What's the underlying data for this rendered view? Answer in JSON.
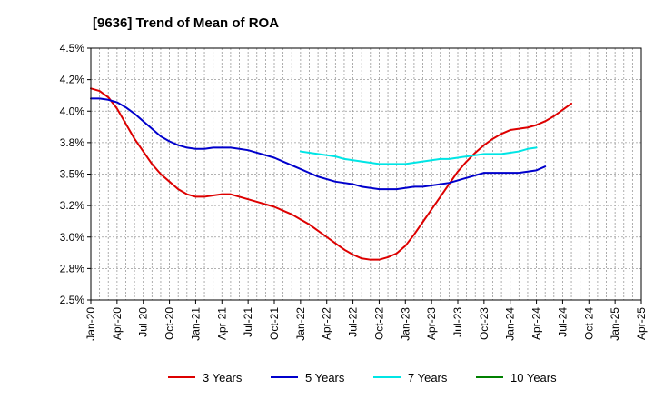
{
  "chart_data": {
    "type": "line",
    "title": "[9636]  Trend of Mean of ROA",
    "xlabel": "",
    "ylabel": "",
    "ylim": [
      2.5,
      4.5
    ],
    "y_ticks": [
      2.5,
      2.75,
      3.0,
      3.25,
      3.5,
      3.75,
      4.0,
      4.25,
      4.5
    ],
    "y_tick_labels": [
      "2.5%",
      "2.8%",
      "3.0%",
      "3.2%",
      "3.5%",
      "3.8%",
      "4.0%",
      "4.2%",
      "4.5%"
    ],
    "x_tick_labels": [
      "Jan-20",
      "Apr-20",
      "Jul-20",
      "Oct-20",
      "Jan-21",
      "Apr-21",
      "Jul-21",
      "Oct-21",
      "Jan-22",
      "Apr-22",
      "Jul-22",
      "Oct-22",
      "Jan-23",
      "Apr-23",
      "Jul-23",
      "Oct-23",
      "Jan-24",
      "Apr-24",
      "Jul-24",
      "Oct-24",
      "Jan-25",
      "Apr-25"
    ],
    "grid": true,
    "legend_position": "bottom",
    "series": [
      {
        "name": "3 Years",
        "color": "#dd0000",
        "start_index": 0,
        "values": [
          4.18,
          4.16,
          4.11,
          4.02,
          3.9,
          3.78,
          3.68,
          3.58,
          3.5,
          3.44,
          3.38,
          3.34,
          3.32,
          3.32,
          3.33,
          3.34,
          3.34,
          3.32,
          3.3,
          3.28,
          3.26,
          3.24,
          3.21,
          3.18,
          3.14,
          3.1,
          3.05,
          3.0,
          2.95,
          2.9,
          2.86,
          2.83,
          2.82,
          2.82,
          2.84,
          2.87,
          2.93,
          3.02,
          3.12,
          3.22,
          3.32,
          3.42,
          3.52,
          3.6,
          3.67,
          3.73,
          3.78,
          3.82,
          3.85,
          3.86,
          3.87,
          3.89,
          3.92,
          3.96,
          4.01,
          4.06
        ]
      },
      {
        "name": "5 Years",
        "color": "#0000cc",
        "start_index": 0,
        "values": [
          4.1,
          4.1,
          4.09,
          4.07,
          4.03,
          3.98,
          3.92,
          3.86,
          3.8,
          3.76,
          3.73,
          3.71,
          3.7,
          3.7,
          3.71,
          3.71,
          3.71,
          3.7,
          3.69,
          3.67,
          3.65,
          3.63,
          3.6,
          3.57,
          3.54,
          3.51,
          3.48,
          3.46,
          3.44,
          3.43,
          3.42,
          3.4,
          3.39,
          3.38,
          3.38,
          3.38,
          3.39,
          3.4,
          3.4,
          3.41,
          3.42,
          3.43,
          3.45,
          3.47,
          3.49,
          3.51,
          3.51,
          3.51,
          3.51,
          3.51,
          3.52,
          3.53,
          3.56
        ]
      },
      {
        "name": "7 Years",
        "color": "#00e5e5",
        "start_index": 24,
        "values": [
          3.68,
          3.67,
          3.66,
          3.65,
          3.64,
          3.62,
          3.61,
          3.6,
          3.59,
          3.58,
          3.58,
          3.58,
          3.58,
          3.59,
          3.6,
          3.61,
          3.62,
          3.62,
          3.63,
          3.64,
          3.65,
          3.66,
          3.66,
          3.66,
          3.67,
          3.68,
          3.7,
          3.71
        ]
      },
      {
        "name": "10 Years",
        "color": "#008000",
        "start_index": 0,
        "values": []
      }
    ]
  }
}
